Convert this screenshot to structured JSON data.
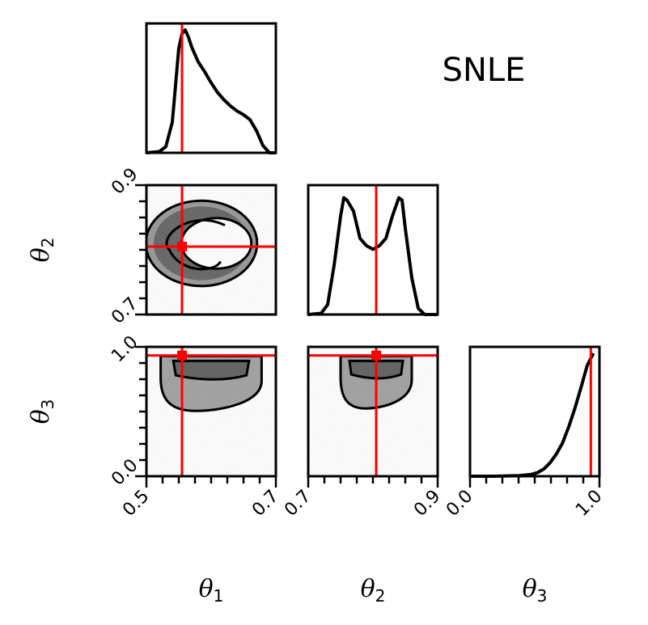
{
  "chart_data": {
    "type": "corner",
    "title": "SNLE",
    "colors": {
      "truth": "#ff0000",
      "density": "#000000"
    },
    "parameters": [
      {
        "symbol": "θ",
        "subscript": "1",
        "range": [
          0.5,
          0.7
        ],
        "tick_labels": [
          "0.5",
          "0.7"
        ],
        "truth": 0.555
      },
      {
        "symbol": "θ",
        "subscript": "2",
        "range": [
          0.7,
          0.9
        ],
        "tick_labels": [
          "0.7",
          "0.9"
        ],
        "truth": 0.805
      },
      {
        "symbol": "θ",
        "subscript": "3",
        "range": [
          0.0,
          1.05
        ],
        "tick_labels": [
          "0.0",
          "1.0"
        ],
        "truth": 0.98
      }
    ],
    "marginals": [
      {
        "param": 1,
        "x": [
          0.5,
          0.52,
          0.53,
          0.54,
          0.545,
          0.55,
          0.555,
          0.56,
          0.565,
          0.57,
          0.58,
          0.59,
          0.6,
          0.61,
          0.62,
          0.63,
          0.64,
          0.65,
          0.66,
          0.67,
          0.68,
          0.69,
          0.7
        ],
        "density": [
          0,
          0.01,
          0.05,
          0.25,
          0.55,
          0.85,
          0.97,
          1.0,
          0.94,
          0.86,
          0.74,
          0.66,
          0.57,
          0.49,
          0.43,
          0.38,
          0.34,
          0.31,
          0.27,
          0.18,
          0.06,
          0.0,
          0
        ]
      },
      {
        "param": 2,
        "x": [
          0.7,
          0.72,
          0.73,
          0.74,
          0.75,
          0.755,
          0.76,
          0.77,
          0.78,
          0.79,
          0.8,
          0.81,
          0.82,
          0.83,
          0.84,
          0.845,
          0.85,
          0.86,
          0.87,
          0.88,
          0.9
        ],
        "density": [
          0,
          0.01,
          0.08,
          0.4,
          0.8,
          0.95,
          0.93,
          0.84,
          0.62,
          0.56,
          0.53,
          0.56,
          0.62,
          0.8,
          0.95,
          0.93,
          0.7,
          0.3,
          0.05,
          0.0,
          0
        ]
      },
      {
        "param": 3,
        "x": [
          0.0,
          0.2,
          0.4,
          0.5,
          0.55,
          0.6,
          0.65,
          0.7,
          0.75,
          0.8,
          0.85,
          0.9,
          0.95,
          1.0
        ],
        "density": [
          0,
          0,
          0.005,
          0.015,
          0.03,
          0.06,
          0.11,
          0.18,
          0.27,
          0.4,
          0.55,
          0.72,
          0.9,
          1.0
        ]
      }
    ],
    "pairs": [
      {
        "x_param": 1,
        "y_param": 2,
        "shape": "ring",
        "center": [
          0.585,
          0.81
        ],
        "radius": [
          0.066,
          0.051
        ],
        "width": [
          0.02,
          0.015
        ]
      },
      {
        "x_param": 1,
        "y_param": 3,
        "shape": "cap",
        "center": [
          0.6,
          0.93
        ],
        "half_width": 0.078,
        "top": 0.975,
        "bottom": 0.53
      },
      {
        "x_param": 2,
        "y_param": 3,
        "shape": "cap",
        "center": [
          0.805,
          0.93
        ],
        "half_width": 0.055,
        "top": 0.975,
        "bottom": 0.55
      }
    ]
  }
}
